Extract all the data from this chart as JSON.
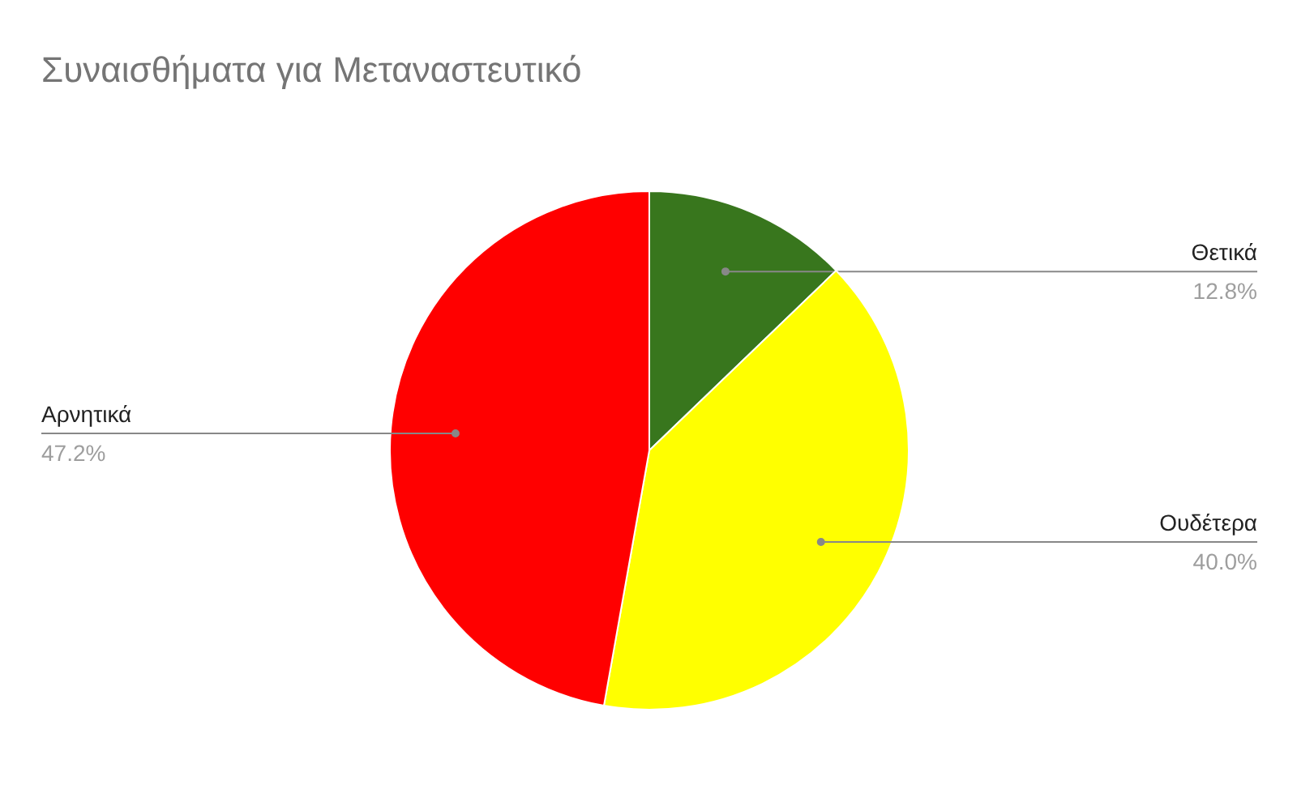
{
  "chart_data": {
    "type": "pie",
    "title": "Συναισθήματα για Μεταναστευτικό",
    "categories": [
      "Θετικά",
      "Ουδέτερα",
      "Αρνητικά"
    ],
    "values": [
      12.8,
      40.0,
      47.2
    ],
    "colors": [
      "#38761d",
      "#ffff00",
      "#ff0000"
    ],
    "value_labels": [
      "12.8%",
      "40.0%",
      "47.2%"
    ]
  }
}
